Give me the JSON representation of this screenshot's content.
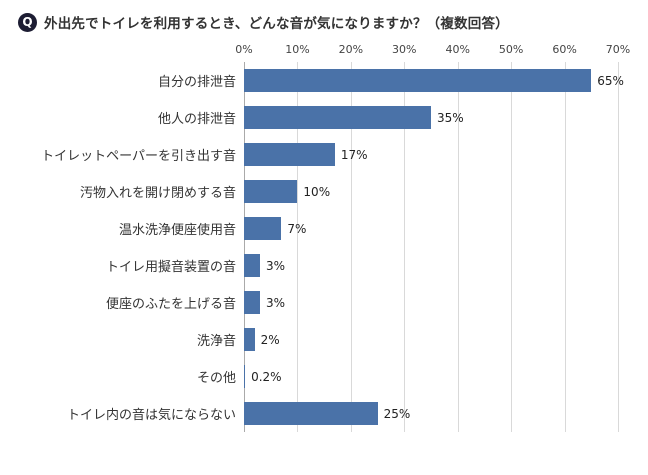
{
  "header": {
    "q_badge": "Q",
    "title": "外出先でトイレを利用するとき、どんな音が気になりますか？（複数回答）"
  },
  "chart_data": {
    "type": "bar",
    "orientation": "horizontal",
    "title": "外出先でトイレを利用するとき、どんな音が気になりますか？（複数回答）",
    "categories": [
      "自分の排泄音",
      "他人の排泄音",
      "トイレットペーパーを引き出す音",
      "汚物入れを開け閉めする音",
      "温水洗浄便座使用音",
      "トイレ用擬音装置の音",
      "便座のふたを上げる音",
      "洗浄音",
      "その他",
      "トイレ内の音は気にならない"
    ],
    "values": [
      65,
      35,
      17,
      10,
      7,
      3,
      3,
      2,
      0.2,
      25
    ],
    "value_labels": [
      "65%",
      "35%",
      "17%",
      "10%",
      "7%",
      "3%",
      "3%",
      "2%",
      "0.2%",
      "25%"
    ],
    "axis": {
      "position": "top",
      "min": 0,
      "max": 70,
      "tick_interval": 10,
      "tick_labels": [
        "0%",
        "10%",
        "20%",
        "30%",
        "40%",
        "50%",
        "60%",
        "70%"
      ]
    },
    "grid": true,
    "legend": false,
    "bar_color": "#4a72a8"
  }
}
